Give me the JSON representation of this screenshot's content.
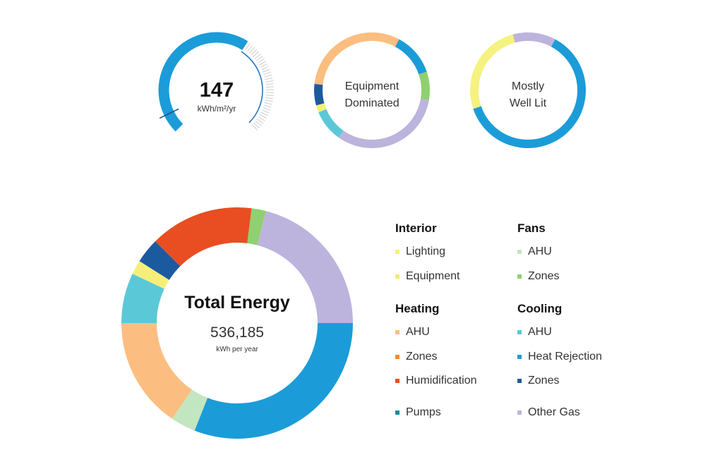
{
  "eui_gauge": {
    "value": "147",
    "unit": "kWh/m²/yr",
    "fill_fraction": 0.62,
    "marker_fraction": 0.07,
    "fill_color": "#1b9cd8",
    "track_color": "#cccccc"
  },
  "mini_donuts": [
    {
      "label_line1": "Equipment",
      "label_line2": "Dominated",
      "segments": [
        {
          "fraction": 0.12,
          "color": "#1b9cd8"
        },
        {
          "fraction": 0.08,
          "color": "#8fd070"
        },
        {
          "fraction": 0.32,
          "color": "#bcb4dc"
        },
        {
          "fraction": 0.09,
          "color": "#5bc8d8"
        },
        {
          "fraction": 0.02,
          "color": "#f5ef7a"
        },
        {
          "fraction": 0.06,
          "color": "#1c5aa0"
        },
        {
          "fraction": 0.31,
          "color": "#fbbe80"
        }
      ]
    },
    {
      "label_line1": "Mostly",
      "label_line2": "Well Lit",
      "segments": [
        {
          "fraction": 0.62,
          "color": "#1b9cd8"
        },
        {
          "fraction": 0.26,
          "color": "#f5f280"
        },
        {
          "fraction": 0.12,
          "color": "#bcb4dc"
        }
      ]
    }
  ],
  "chart_data": {
    "type": "pie",
    "title": "Total Energy",
    "total_value": "536,185",
    "total_unit": "kWh per year",
    "slices": [
      {
        "name": "Heat Rejection",
        "fraction": 0.31,
        "color": "#1b9cd8"
      },
      {
        "name": "Fans AHU",
        "fraction": 0.035,
        "color": "#c2e6c0"
      },
      {
        "name": "Heating AHU",
        "fraction": 0.155,
        "color": "#fbbe80"
      },
      {
        "name": "Cooling AHU",
        "fraction": 0.07,
        "color": "#5bc8d8"
      },
      {
        "name": "Equipment",
        "fraction": 0.02,
        "color": "#f5ef7a"
      },
      {
        "name": "Cooling Zones",
        "fraction": 0.035,
        "color": "#1c5aa0"
      },
      {
        "name": "Humidification",
        "fraction": 0.145,
        "color": "#e84e22"
      },
      {
        "name": "Fans Zones",
        "fraction": 0.02,
        "color": "#8fd070"
      },
      {
        "name": "Other Gas",
        "fraction": 0.21,
        "color": "#bcb4dc"
      }
    ]
  },
  "legend": {
    "interior": {
      "header": "Interior",
      "items": [
        {
          "label": "Lighting",
          "color": "#f5f27a"
        },
        {
          "label": "Equipment",
          "color": "#f5e87a"
        }
      ]
    },
    "fans": {
      "header": "Fans",
      "items": [
        {
          "label": "AHU",
          "color": "#c2e6c0"
        },
        {
          "label": "Zones",
          "color": "#8fd070"
        }
      ]
    },
    "heating": {
      "header": "Heating",
      "items": [
        {
          "label": "AHU",
          "color": "#fbbe80"
        },
        {
          "label": "Zones",
          "color": "#f08a30"
        },
        {
          "label": "Humidification",
          "color": "#e84e22"
        }
      ]
    },
    "cooling": {
      "header": "Cooling",
      "items": [
        {
          "label": "AHU",
          "color": "#5bc8d8"
        },
        {
          "label": "Heat Rejection",
          "color": "#1b9cd8"
        },
        {
          "label": "Zones",
          "color": "#1c5aa0"
        }
      ]
    },
    "pumps": {
      "label": "Pumps",
      "color": "#1a8aa0"
    },
    "other_gas": {
      "label": "Other Gas",
      "color": "#bcb4dc"
    }
  }
}
